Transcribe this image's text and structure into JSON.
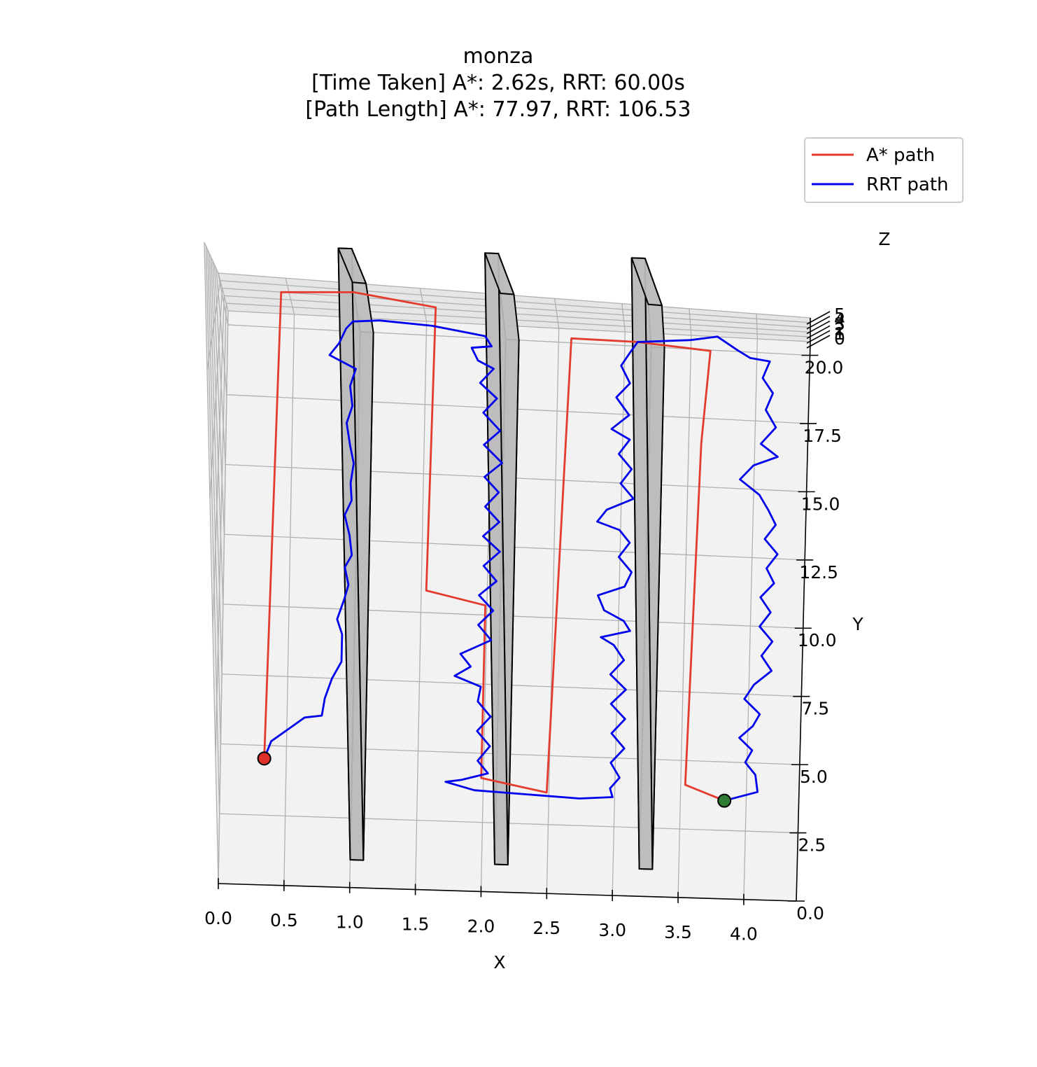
{
  "chart_data": {
    "type": "line",
    "title_lines": [
      "monza",
      "[Time Taken] A*: 2.62s, RRT: 60.00s",
      "[Path Length] A*: 77.97, RRT: 106.53"
    ],
    "xlabel": "X",
    "ylabel": "Y",
    "zlabel": "Z",
    "xlim": [
      0,
      4.4
    ],
    "ylim": [
      0,
      20.5
    ],
    "zlim": [
      0,
      5
    ],
    "x_ticks": [
      "0.0",
      "0.5",
      "1.0",
      "1.5",
      "2.0",
      "2.5",
      "3.0",
      "3.5",
      "4.0"
    ],
    "y_ticks": [
      "0.0",
      "2.5",
      "5.0",
      "7.5",
      "10.0",
      "12.5",
      "15.0",
      "17.5",
      "20.0"
    ],
    "z_ticks": [
      "0",
      "1",
      "2",
      "3",
      "4",
      "5"
    ],
    "grid": true,
    "legend_position": "top-right",
    "start": {
      "x": 0.35,
      "y": 2.5,
      "z": 0.5,
      "color": "#e0302a"
    },
    "goal": {
      "x": 3.85,
      "y": 1.4,
      "z": 0.5,
      "color": "#2e7d32"
    },
    "obstacles": [
      {
        "x": [
          1.0,
          1.1
        ],
        "y": [
          1.0,
          20.0
        ],
        "z": [
          0,
          5
        ]
      },
      {
        "x": [
          2.1,
          2.2
        ],
        "y": [
          1.0,
          20.0
        ],
        "z": [
          0,
          5
        ]
      },
      {
        "x": [
          3.2,
          3.3
        ],
        "y": [
          1.0,
          20.0
        ],
        "z": [
          0,
          5
        ]
      }
    ],
    "series": [
      {
        "name": "A* path",
        "color": "#e33b2e",
        "points": [
          [
            0.35,
            2.5,
            0.5
          ],
          [
            0.45,
            20.0,
            3.5
          ],
          [
            1.0,
            20.0,
            4.0
          ],
          [
            1.6,
            20.0,
            3.0
          ],
          [
            1.55,
            9.5,
            0.5
          ],
          [
            2.0,
            9.0,
            0.5
          ],
          [
            2.0,
            2.0,
            0.5
          ],
          [
            2.5,
            1.5,
            0.5
          ],
          [
            2.6,
            20.0,
            0.5
          ],
          [
            3.1,
            20.0,
            0.5
          ],
          [
            3.65,
            19.8,
            0.5
          ],
          [
            3.6,
            16.0,
            0.5
          ],
          [
            3.55,
            2.0,
            0.5
          ],
          [
            3.85,
            1.4,
            0.5
          ]
        ]
      },
      {
        "name": "RRT path",
        "color": "#0000ee",
        "points": [
          [
            0.35,
            2.5,
            0.5
          ],
          [
            0.4,
            3.2,
            0.5
          ],
          [
            0.55,
            3.8,
            0.5
          ],
          [
            0.65,
            4.2,
            0.5
          ],
          [
            0.78,
            4.3,
            0.5
          ],
          [
            0.8,
            5.0,
            0.5
          ],
          [
            0.85,
            5.8,
            0.5
          ],
          [
            0.92,
            6.5,
            0.5
          ],
          [
            0.92,
            7.6,
            0.5
          ],
          [
            0.88,
            8.2,
            0.5
          ],
          [
            0.93,
            9.0,
            0.5
          ],
          [
            0.96,
            9.6,
            0.5
          ],
          [
            0.93,
            10.3,
            0.5
          ],
          [
            0.98,
            10.8,
            0.5
          ],
          [
            0.96,
            11.6,
            0.5
          ],
          [
            0.92,
            12.4,
            0.5
          ],
          [
            0.97,
            13.0,
            0.5
          ],
          [
            0.96,
            13.7,
            0.5
          ],
          [
            0.98,
            14.5,
            0.5
          ],
          [
            0.95,
            15.2,
            0.5
          ],
          [
            0.92,
            16.1,
            0.5
          ],
          [
            0.96,
            16.8,
            0.5
          ],
          [
            0.94,
            17.6,
            0.5
          ],
          [
            0.98,
            18.3,
            0.5
          ],
          [
            0.78,
            18.8,
            0.5
          ],
          [
            0.85,
            19.3,
            0.5
          ],
          [
            0.9,
            19.9,
            0.5
          ],
          [
            0.95,
            20.2,
            0.5
          ],
          [
            1.15,
            20.3,
            0.5
          ],
          [
            1.55,
            20.2,
            0.5
          ],
          [
            1.95,
            19.9,
            0.5
          ],
          [
            2.0,
            19.5,
            0.5
          ],
          [
            1.85,
            19.4,
            0.5
          ],
          [
            1.9,
            18.9,
            0.5
          ],
          [
            2.02,
            18.6,
            0.5
          ],
          [
            1.92,
            18.0,
            0.5
          ],
          [
            2.05,
            17.4,
            0.5
          ],
          [
            1.95,
            16.8,
            0.5
          ],
          [
            2.08,
            16.1,
            0.5
          ],
          [
            1.96,
            15.5,
            0.5
          ],
          [
            2.1,
            14.8,
            0.5
          ],
          [
            1.97,
            14.2,
            0.5
          ],
          [
            2.08,
            13.6,
            0.5
          ],
          [
            1.98,
            13.0,
            0.5
          ],
          [
            2.09,
            12.4,
            0.5
          ],
          [
            1.97,
            11.8,
            0.5
          ],
          [
            2.1,
            11.2,
            0.5
          ],
          [
            1.98,
            10.6,
            0.5
          ],
          [
            2.08,
            10.0,
            0.5
          ],
          [
            1.95,
            9.4,
            0.5
          ],
          [
            2.06,
            8.8,
            0.5
          ],
          [
            1.95,
            8.2,
            0.5
          ],
          [
            2.05,
            7.6,
            0.5
          ],
          [
            1.82,
            7.0,
            0.5
          ],
          [
            1.9,
            6.5,
            0.5
          ],
          [
            1.78,
            6.1,
            0.5
          ],
          [
            1.98,
            5.7,
            0.5
          ],
          [
            1.96,
            5.1,
            0.5
          ],
          [
            2.06,
            4.5,
            0.5
          ],
          [
            1.96,
            3.9,
            0.5
          ],
          [
            2.06,
            3.3,
            0.5
          ],
          [
            1.97,
            2.7,
            0.5
          ],
          [
            2.05,
            2.2,
            0.5
          ],
          [
            1.85,
            1.9,
            0.5
          ],
          [
            1.73,
            1.8,
            0.5
          ],
          [
            1.95,
            1.5,
            0.5
          ],
          [
            2.35,
            1.4,
            0.5
          ],
          [
            2.75,
            1.3,
            0.5
          ],
          [
            3.0,
            1.4,
            0.5
          ],
          [
            2.98,
            1.75,
            0.5
          ],
          [
            3.05,
            2.2,
            0.5
          ],
          [
            2.98,
            2.8,
            0.5
          ],
          [
            3.08,
            3.4,
            0.5
          ],
          [
            2.98,
            4.0,
            0.5
          ],
          [
            3.08,
            4.6,
            0.5
          ],
          [
            2.97,
            5.2,
            0.5
          ],
          [
            3.08,
            5.8,
            0.5
          ],
          [
            2.96,
            6.4,
            0.5
          ],
          [
            3.06,
            7.0,
            0.5
          ],
          [
            2.98,
            7.6,
            0.5
          ],
          [
            2.88,
            7.9,
            0.5
          ],
          [
            3.1,
            8.2,
            0.5
          ],
          [
            3.05,
            8.6,
            0.5
          ],
          [
            2.9,
            9.0,
            0.5
          ],
          [
            2.85,
            9.6,
            0.5
          ],
          [
            3.05,
            10.0,
            0.5
          ],
          [
            3.1,
            10.6,
            0.5
          ],
          [
            3.0,
            11.2,
            0.5
          ],
          [
            3.08,
            11.8,
            0.5
          ],
          [
            3.0,
            12.3,
            0.5
          ],
          [
            2.83,
            12.6,
            0.5
          ],
          [
            2.9,
            13.1,
            0.5
          ],
          [
            3.1,
            13.6,
            0.5
          ],
          [
            3.0,
            14.2,
            0.5
          ],
          [
            3.08,
            14.8,
            0.5
          ],
          [
            2.98,
            15.4,
            0.5
          ],
          [
            3.06,
            16.0,
            0.5
          ],
          [
            2.92,
            16.4,
            0.5
          ],
          [
            3.05,
            17.0,
            0.5
          ],
          [
            2.95,
            17.7,
            0.5
          ],
          [
            3.05,
            18.3,
            0.5
          ],
          [
            2.98,
            19.0,
            0.5
          ],
          [
            3.05,
            19.6,
            0.5
          ],
          [
            3.1,
            20.0,
            0.5
          ],
          [
            3.5,
            20.2,
            0.5
          ],
          [
            3.7,
            20.4,
            0.5
          ],
          [
            3.85,
            19.9,
            0.5
          ],
          [
            3.95,
            19.6,
            0.5
          ],
          [
            4.1,
            19.5,
            0.5
          ],
          [
            4.05,
            18.8,
            0.5
          ],
          [
            4.13,
            18.2,
            0.5
          ],
          [
            4.08,
            17.5,
            0.5
          ],
          [
            4.16,
            16.8,
            0.5
          ],
          [
            4.05,
            16.1,
            0.5
          ],
          [
            4.18,
            15.6,
            0.5
          ],
          [
            4.0,
            15.2,
            0.5
          ],
          [
            3.9,
            14.6,
            0.5
          ],
          [
            4.05,
            14.0,
            0.5
          ],
          [
            4.12,
            13.4,
            0.5
          ],
          [
            4.18,
            12.8,
            0.5
          ],
          [
            4.1,
            12.2,
            0.5
          ],
          [
            4.2,
            11.6,
            0.5
          ],
          [
            4.12,
            11.0,
            0.5
          ],
          [
            4.18,
            10.4,
            0.5
          ],
          [
            4.08,
            9.8,
            0.5
          ],
          [
            4.16,
            9.2,
            0.5
          ],
          [
            4.08,
            8.6,
            0.5
          ],
          [
            4.18,
            8.0,
            0.5
          ],
          [
            4.1,
            7.4,
            0.5
          ],
          [
            4.18,
            6.8,
            0.5
          ],
          [
            4.05,
            6.2,
            0.5
          ],
          [
            3.98,
            5.6,
            0.5
          ],
          [
            4.1,
            5.0,
            0.5
          ],
          [
            4.05,
            4.5,
            0.5
          ],
          [
            3.95,
            4.0,
            0.5
          ],
          [
            4.05,
            3.5,
            0.5
          ],
          [
            4.0,
            3.0,
            0.5
          ],
          [
            4.08,
            2.5,
            0.5
          ],
          [
            4.1,
            1.8,
            0.5
          ],
          [
            3.85,
            1.4,
            0.5
          ]
        ]
      }
    ]
  }
}
